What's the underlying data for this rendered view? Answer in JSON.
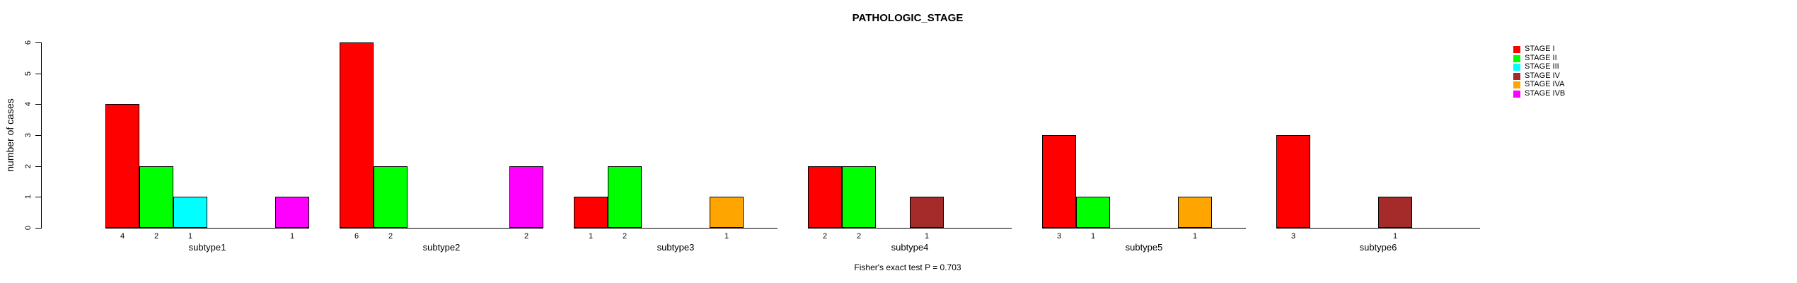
{
  "chart_data": {
    "type": "bar",
    "title": "PATHOLOGIC_STAGE",
    "ylabel": "number of cases",
    "xlabel": "",
    "footnote": "Fisher's exact test P = 0.703",
    "ylim": [
      0,
      6
    ],
    "yticks": [
      0,
      1,
      2,
      3,
      4,
      5,
      6
    ],
    "grid": false,
    "legend_position": "right-outside",
    "bar_value_labels_shown": "only nonzero counts, printed under each bar",
    "categories": [
      "subtype1",
      "subtype2",
      "subtype3",
      "subtype4",
      "subtype5",
      "subtype6"
    ],
    "series": [
      {
        "name": "STAGE I",
        "color": "#FF0000",
        "values": [
          4,
          6,
          1,
          2,
          3,
          3
        ]
      },
      {
        "name": "STAGE II",
        "color": "#00FF00",
        "values": [
          2,
          2,
          2,
          2,
          1,
          0
        ]
      },
      {
        "name": "STAGE III",
        "color": "#00FFFF",
        "values": [
          1,
          0,
          0,
          0,
          0,
          0
        ]
      },
      {
        "name": "STAGE IV",
        "color": "#A52A2A",
        "values": [
          0,
          0,
          0,
          1,
          0,
          1
        ]
      },
      {
        "name": "STAGE IVA",
        "color": "#FFA500",
        "values": [
          0,
          0,
          1,
          0,
          1,
          0
        ]
      },
      {
        "name": "STAGE IVB",
        "color": "#FF00FF",
        "values": [
          1,
          2,
          0,
          0,
          0,
          0
        ]
      }
    ],
    "colors": {
      "axis": "#000000",
      "bar_border": "#000000",
      "background": "#FFFFFF",
      "text": "#000000"
    }
  }
}
